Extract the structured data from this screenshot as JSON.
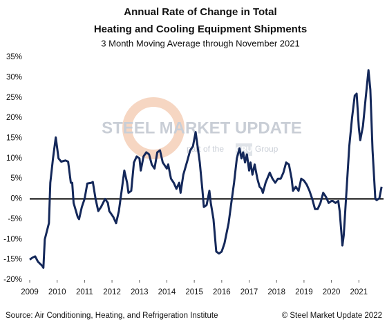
{
  "chart_data": {
    "type": "line",
    "title": [
      "Annual Rate of Change in Total",
      "Heating and Cooling Equipment Shipments"
    ],
    "subtitle": "3 Month Moving Average through November 2021",
    "source": "Source: Air Conditioning, Heating, and Refrigeration Institute",
    "copyright": "© Steel Market Update 2022",
    "watermark": {
      "name": "STEEL MARKET UPDATE",
      "tagline_before": "part of the",
      "brand": "CRU",
      "tagline_after": "Group"
    },
    "color": "#14285a",
    "x": [
      2009.0,
      2009.1,
      2009.2,
      2009.3,
      2009.45,
      2009.5,
      2009.55,
      2009.7,
      2009.75,
      2009.85,
      2009.95,
      2010.05,
      2010.15,
      2010.3,
      2010.4,
      2010.5,
      2010.55,
      2010.6,
      2010.75,
      2010.8,
      2010.9,
      2011.0,
      2011.1,
      2011.25,
      2011.3,
      2011.4,
      2011.5,
      2011.6,
      2011.75,
      2011.85,
      2011.9,
      2012.0,
      2012.05,
      2012.15,
      2012.25,
      2012.35,
      2012.45,
      2012.55,
      2012.6,
      2012.7,
      2012.8,
      2012.9,
      2013.0,
      2013.05,
      2013.15,
      2013.25,
      2013.35,
      2013.45,
      2013.55,
      2013.65,
      2013.75,
      2013.85,
      2014.0,
      2014.05,
      2014.15,
      2014.25,
      2014.35,
      2014.45,
      2014.5,
      2014.6,
      2014.75,
      2014.85,
      2014.95,
      2015.05,
      2015.1,
      2015.2,
      2015.3,
      2015.35,
      2015.45,
      2015.55,
      2015.6,
      2015.7,
      2015.8,
      2015.9,
      2016.0,
      2016.1,
      2016.25,
      2016.35,
      2016.45,
      2016.55,
      2016.65,
      2016.72,
      2016.78,
      2016.85,
      2016.92,
      2017.0,
      2017.05,
      2017.12,
      2017.2,
      2017.3,
      2017.38,
      2017.45,
      2017.5,
      2017.6,
      2017.75,
      2017.85,
      2017.95,
      2018.05,
      2018.15,
      2018.25,
      2018.35,
      2018.45,
      2018.55,
      2018.6,
      2018.7,
      2018.8,
      2018.9,
      2019.0,
      2019.1,
      2019.2,
      2019.3,
      2019.4,
      2019.5,
      2019.6,
      2019.7,
      2019.8,
      2019.9,
      2020.0,
      2020.05,
      2020.15,
      2020.25,
      2020.3,
      2020.4,
      2020.45,
      2020.55,
      2020.65,
      2020.75,
      2020.85,
      2020.92,
      2021.0,
      2021.05,
      2021.15,
      2021.25,
      2021.35,
      2021.42,
      2021.5,
      2021.6,
      2021.65,
      2021.75,
      2021.83
    ],
    "values": [
      -15,
      -14.5,
      -14.2,
      -15.5,
      -16.5,
      -17,
      -10,
      -6,
      4,
      10,
      15.2,
      10,
      9.2,
      9.5,
      9.2,
      4,
      4,
      -1,
      -4.5,
      -5,
      -2,
      0,
      3.8,
      4,
      4.2,
      0,
      -3,
      -2,
      0,
      -1,
      -3,
      -4,
      -4.5,
      -6,
      -3,
      2,
      7,
      4,
      1.5,
      2,
      9,
      10.5,
      10,
      7,
      10.5,
      11.5,
      11,
      8.5,
      7.5,
      11.5,
      12,
      9,
      7.5,
      8.5,
      5,
      4,
      2.5,
      4,
      1.5,
      6,
      9.5,
      12,
      13,
      16.5,
      14,
      9,
      2,
      -2,
      -1.5,
      2,
      -1,
      -5,
      -13,
      -13.5,
      -13,
      -11,
      -6,
      -1,
      4,
      10,
      12.5,
      10,
      11.5,
      9,
      11,
      7,
      9,
      6,
      8.5,
      5,
      3,
      2.5,
      1.5,
      4,
      6.5,
      5,
      4,
      5,
      5,
      6.5,
      9,
      8.5,
      5,
      2,
      3,
      2,
      5,
      4.5,
      3.5,
      2,
      0,
      -2.5,
      -2.5,
      -1,
      1.5,
      0.5,
      -1,
      -0.5,
      -0.5,
      -1,
      -0.5,
      -3,
      -11.5,
      -9,
      2,
      13,
      20,
      25.5,
      26,
      17.5,
      14.5,
      18,
      25,
      31.8,
      27,
      12,
      0,
      -0.3,
      0.2,
      3
    ],
    "xlim": [
      2009,
      2021.9
    ],
    "xticks": [
      2009,
      2010,
      2011,
      2012,
      2013,
      2014,
      2015,
      2016,
      2017,
      2018,
      2019,
      2020,
      2021
    ],
    "ylim": [
      -20,
      35
    ],
    "yticks": [
      {
        "value": -20,
        "label": "-20%"
      },
      {
        "value": -15,
        "label": "-15%"
      },
      {
        "value": -10,
        "label": "-10%"
      },
      {
        "value": -5,
        "label": "-5%"
      },
      {
        "value": 0,
        "label": "0%"
      },
      {
        "value": 5,
        "label": "5%"
      },
      {
        "value": 10,
        "label": "10%"
      },
      {
        "value": 15,
        "label": "15%"
      },
      {
        "value": 20,
        "label": "20%"
      },
      {
        "value": 25,
        "label": "25%"
      },
      {
        "value": 30,
        "label": "30%"
      },
      {
        "value": 35,
        "label": "35%"
      }
    ],
    "grid": false
  }
}
